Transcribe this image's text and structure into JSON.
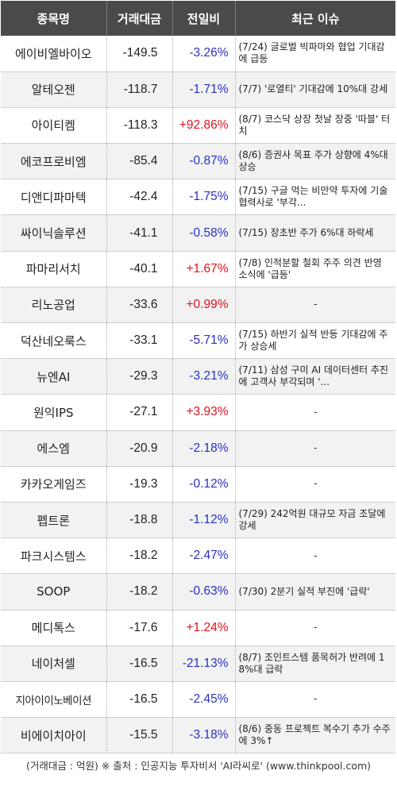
{
  "header": {
    "col_name": "종목명",
    "col_amount": "거래대금",
    "col_change": "전일비",
    "col_issue": "최근 이슈"
  },
  "rows": [
    {
      "name": "에이비엘바이오",
      "amount": "-149.5",
      "change": "-3.26%",
      "dir": "down",
      "issue": "(7/24) 글로벌 빅파마와 협업 기대감에 급등"
    },
    {
      "name": "알테오젠",
      "amount": "-118.7",
      "change": "-1.71%",
      "dir": "down",
      "issue": "(7/7) '로열티' 기대감에 10%대 강세"
    },
    {
      "name": "아이티켐",
      "amount": "-118.3",
      "change": "+92.86%",
      "dir": "up",
      "issue": "(8/7) 코스닥 상장 첫날 장중 '따블' 터치"
    },
    {
      "name": "에코프로비엠",
      "amount": "-85.4",
      "change": "-0.87%",
      "dir": "down",
      "issue": "(8/6) 증권사 목표 주가 상향에 4%대 상승"
    },
    {
      "name": "디앤디파마텍",
      "amount": "-42.4",
      "change": "-1.75%",
      "dir": "down",
      "issue": "(7/15) 구글 먹는 비만약 투자에 기술 협력사로 '부각..."
    },
    {
      "name": "싸이닉솔루션",
      "amount": "-41.1",
      "change": "-0.58%",
      "dir": "down",
      "issue": "(7/15) 장초반 주가 6%대 하락세"
    },
    {
      "name": "파마리서치",
      "amount": "-40.1",
      "change": "+1.67%",
      "dir": "up",
      "issue": "(7/8) 인적분할 철회 주주 의견 반영 소식에 '급등'"
    },
    {
      "name": "리노공업",
      "amount": "-33.6",
      "change": "+0.99%",
      "dir": "up",
      "issue": "-"
    },
    {
      "name": "덕산네오룩스",
      "amount": "-33.1",
      "change": "-5.71%",
      "dir": "down",
      "issue": "(7/15) 하반기 실적 반등 기대감에 주가 상승세"
    },
    {
      "name": "뉴엔AI",
      "amount": "-29.3",
      "change": "-3.21%",
      "dir": "down",
      "issue": "(7/11) 삼성 구미 AI 데이터센터 추진에 고객사 부각되며 '..."
    },
    {
      "name": "원익IPS",
      "amount": "-27.1",
      "change": "+3.93%",
      "dir": "up",
      "issue": "-"
    },
    {
      "name": "에스엠",
      "amount": "-20.9",
      "change": "-2.18%",
      "dir": "down",
      "issue": "-"
    },
    {
      "name": "카카오게임즈",
      "amount": "-19.3",
      "change": "-0.12%",
      "dir": "down",
      "issue": "-"
    },
    {
      "name": "펩트론",
      "amount": "-18.8",
      "change": "-1.12%",
      "dir": "down",
      "issue": "(7/29) 242억원 대규모 자금 조달에 강세"
    },
    {
      "name": "파크시스템스",
      "amount": "-18.2",
      "change": "-2.47%",
      "dir": "down",
      "issue": "-"
    },
    {
      "name": "SOOP",
      "amount": "-18.2",
      "change": "-0.63%",
      "dir": "down",
      "issue": "(7/30) 2분기 실적 부진에 '급락'"
    },
    {
      "name": "메디톡스",
      "amount": "-17.6",
      "change": "+1.24%",
      "dir": "up",
      "issue": "-"
    },
    {
      "name": "네이처셀",
      "amount": "-16.5",
      "change": "-21.13%",
      "dir": "down",
      "issue": "(8/7) 조인트스템 품목허가 반려에 18%대 급락"
    },
    {
      "name": "지아이이노베이션",
      "amount": "-16.5",
      "change": "-2.45%",
      "dir": "down",
      "issue": "-"
    },
    {
      "name": "비에이치아이",
      "amount": "-15.5",
      "change": "-3.18%",
      "dir": "down",
      "issue": "(8/6) 중동 프로젝트 복수기 추가 수주에 3%↑"
    }
  ],
  "footer": "(거래대금 : 억원) ※ 출처 : 인공지능 투자비서 'AI라씨로' (www.thinkpool.com)",
  "colors": {
    "header_bg": "#4a4a4a",
    "up": "#e0121e",
    "down": "#2b2fbf"
  }
}
